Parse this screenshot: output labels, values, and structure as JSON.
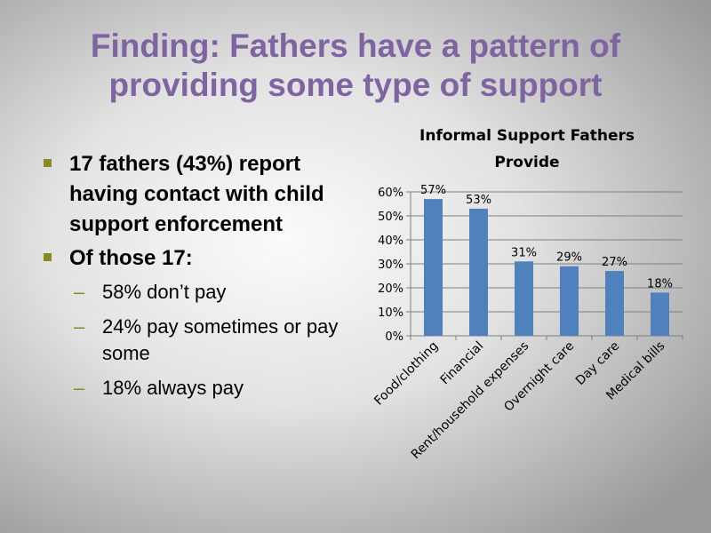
{
  "slide": {
    "title_line1": "Finding: Fathers have a pattern of",
    "title_line2": "providing some type of support"
  },
  "bullets": [
    {
      "text": "17 fathers (43%) report having contact with child support enforcement"
    },
    {
      "text": "Of those 17:",
      "subitems": [
        "58% don’t pay",
        "24% pay sometimes or pay some",
        "18% always pay"
      ]
    }
  ],
  "colors": {
    "title": "#8064a2",
    "bar": "#4f81bd",
    "bullet_marker": "#8a8a1e"
  },
  "chart_data": {
    "type": "bar",
    "title_line1": "Informal Support Fathers",
    "title_line2": "Provide",
    "categories": [
      "Food/clothing",
      "Financial",
      "Rent/household expenses",
      "Overnight care",
      "Day care",
      "Medical bills"
    ],
    "values": [
      57,
      53,
      31,
      29,
      27,
      18
    ],
    "data_labels": [
      "57%",
      "53%",
      "31%",
      "29%",
      "27%",
      "18%"
    ],
    "ylim": [
      0,
      60
    ],
    "yticks": [
      0,
      10,
      20,
      30,
      40,
      50,
      60
    ],
    "ytick_labels": [
      "0%",
      "10%",
      "20%",
      "30%",
      "40%",
      "50%",
      "60%"
    ],
    "grid": true,
    "legend": "none"
  }
}
